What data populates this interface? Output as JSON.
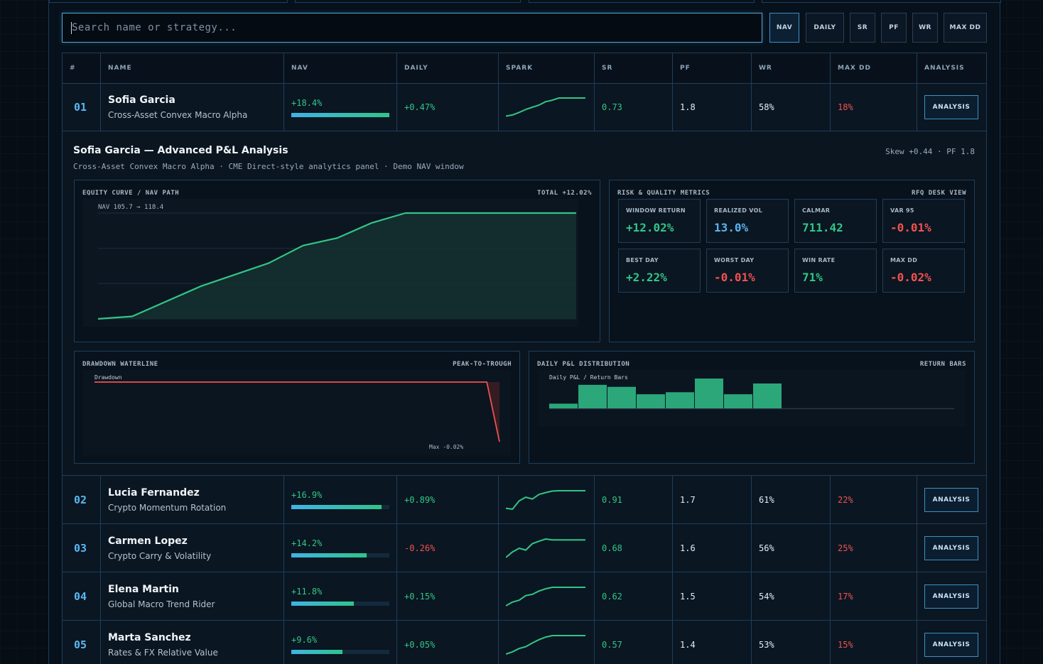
{
  "search": {
    "placeholder": "Search name or strategy..."
  },
  "sort_buttons": [
    "NAV",
    "DAILY",
    "SR",
    "PF",
    "WR",
    "MAX DD"
  ],
  "columns": [
    "#",
    "NAME",
    "NAV",
    "DAILY",
    "SPARK",
    "SR",
    "PF",
    "WR",
    "MAX DD",
    "ANALYSIS"
  ],
  "rows": [
    {
      "rank": "01",
      "name": "Sofia Garcia",
      "strategy": "Cross-Asset Convex Macro Alpha",
      "nav": "+18.4%",
      "nav_fill": 1.0,
      "daily": "+0.47%",
      "daily_dir": "pos",
      "sr": "0.73",
      "pf": "1.8",
      "wr": "58%",
      "max_dd": "18%",
      "action": "ANALYSIS",
      "spark": [
        0.02,
        0.08,
        0.22,
        0.38,
        0.5,
        0.62,
        0.8,
        0.88,
        1.0,
        1.0,
        1.0,
        1.0,
        1.0
      ]
    },
    {
      "rank": "02",
      "name": "Lucia Fernandez",
      "strategy": "Crypto Momentum Rotation",
      "nav": "+16.9%",
      "nav_fill": 0.92,
      "daily": "+0.89%",
      "daily_dir": "pos",
      "sr": "0.91",
      "pf": "1.7",
      "wr": "61%",
      "max_dd": "22%",
      "action": "ANALYSIS",
      "spark": [
        0.05,
        0.0,
        0.45,
        0.65,
        0.55,
        0.8,
        0.9,
        0.98,
        1.0,
        1.0,
        1.0,
        1.0,
        1.0
      ]
    },
    {
      "rank": "03",
      "name": "Carmen Lopez",
      "strategy": "Crypto Carry & Volatility",
      "nav": "+14.2%",
      "nav_fill": 0.77,
      "daily": "-0.26%",
      "daily_dir": "neg",
      "sr": "0.68",
      "pf": "1.6",
      "wr": "56%",
      "max_dd": "25%",
      "action": "ANALYSIS",
      "spark": [
        0.0,
        0.3,
        0.5,
        0.4,
        0.75,
        0.88,
        1.0,
        0.95,
        0.95,
        0.95,
        0.95,
        0.95,
        0.95
      ]
    },
    {
      "rank": "04",
      "name": "Elena Martin",
      "strategy": "Global Macro Trend Rider",
      "nav": "+11.8%",
      "nav_fill": 0.64,
      "daily": "+0.15%",
      "daily_dir": "pos",
      "sr": "0.62",
      "pf": "1.5",
      "wr": "54%",
      "max_dd": "17%",
      "action": "ANALYSIS",
      "spark": [
        0.0,
        0.2,
        0.3,
        0.55,
        0.62,
        0.8,
        0.92,
        1.0,
        1.0,
        1.0,
        1.0,
        1.0,
        1.0
      ]
    },
    {
      "rank": "05",
      "name": "Marta Sanchez",
      "strategy": "Rates & FX Relative Value",
      "nav": "+9.6%",
      "nav_fill": 0.52,
      "daily": "+0.05%",
      "daily_dir": "pos",
      "sr": "0.57",
      "pf": "1.4",
      "wr": "53%",
      "max_dd": "15%",
      "action": "ANALYSIS",
      "spark": [
        0.0,
        0.12,
        0.3,
        0.4,
        0.6,
        0.78,
        0.92,
        1.0,
        1.0,
        1.0,
        1.0,
        1.0,
        1.0
      ]
    }
  ],
  "detail": {
    "title": "Sofia Garcia — Advanced P&L Analysis",
    "subtitle": "Cross-Asset Convex Macro Alpha · CME Direct-style analytics panel · Demo NAV window",
    "skew_pf": "Skew +0.44 · PF 1.8",
    "equity": {
      "title": "EQUITY CURVE / NAV PATH",
      "total": "TOTAL +12.02%",
      "annotation": "NAV 105.7 → 118.4",
      "values": [
        105.7,
        106.0,
        107.8,
        109.6,
        111.0,
        112.4,
        114.5,
        115.4,
        117.2,
        118.4,
        118.4,
        118.4,
        118.4,
        118.4,
        118.4
      ]
    },
    "risk": {
      "title": "RISK & QUALITY METRICS",
      "right": "RFQ DESK VIEW",
      "metrics": [
        {
          "label": "WINDOW RETURN",
          "value": "+12.02%",
          "tone": "pos"
        },
        {
          "label": "REALIZED VOL",
          "value": "13.0%",
          "tone": "blue"
        },
        {
          "label": "CALMAR",
          "value": "711.42",
          "tone": "pos"
        },
        {
          "label": "VAR 95",
          "value": "-0.01%",
          "tone": "neg"
        },
        {
          "label": "BEST DAY",
          "value": "+2.22%",
          "tone": "pos"
        },
        {
          "label": "WORST DAY",
          "value": "-0.01%",
          "tone": "neg"
        },
        {
          "label": "WIN RATE",
          "value": "71%",
          "tone": "pos"
        },
        {
          "label": "MAX DD",
          "value": "-0.02%",
          "tone": "neg"
        }
      ]
    },
    "drawdown": {
      "title": "DRAWDOWN WATERLINE",
      "right": "PEAK-TO-TROUGH",
      "legend": "Drawdown",
      "max_label": "Max -0.02%",
      "values": [
        0,
        0,
        0,
        0,
        0,
        0,
        0,
        0,
        0,
        0,
        0,
        0,
        0,
        0,
        0,
        0,
        0,
        0,
        0,
        0,
        0,
        0,
        0,
        0,
        0,
        0,
        0,
        0,
        0,
        0,
        0,
        0,
        -0.02
      ]
    },
    "distribution": {
      "title": "DAILY P&L DISTRIBUTION",
      "right": "RETURN BARS",
      "legend": "Daily P&L / Return Bars",
      "values": [
        0.35,
        1.75,
        1.6,
        1.05,
        1.2,
        2.22,
        1.05,
        1.85,
        0,
        0,
        0,
        0,
        0,
        0
      ]
    }
  },
  "colors": {
    "accent": "#4fa9d9",
    "positive": "#33c585",
    "negative": "#f0524f",
    "background": "#070d15"
  }
}
